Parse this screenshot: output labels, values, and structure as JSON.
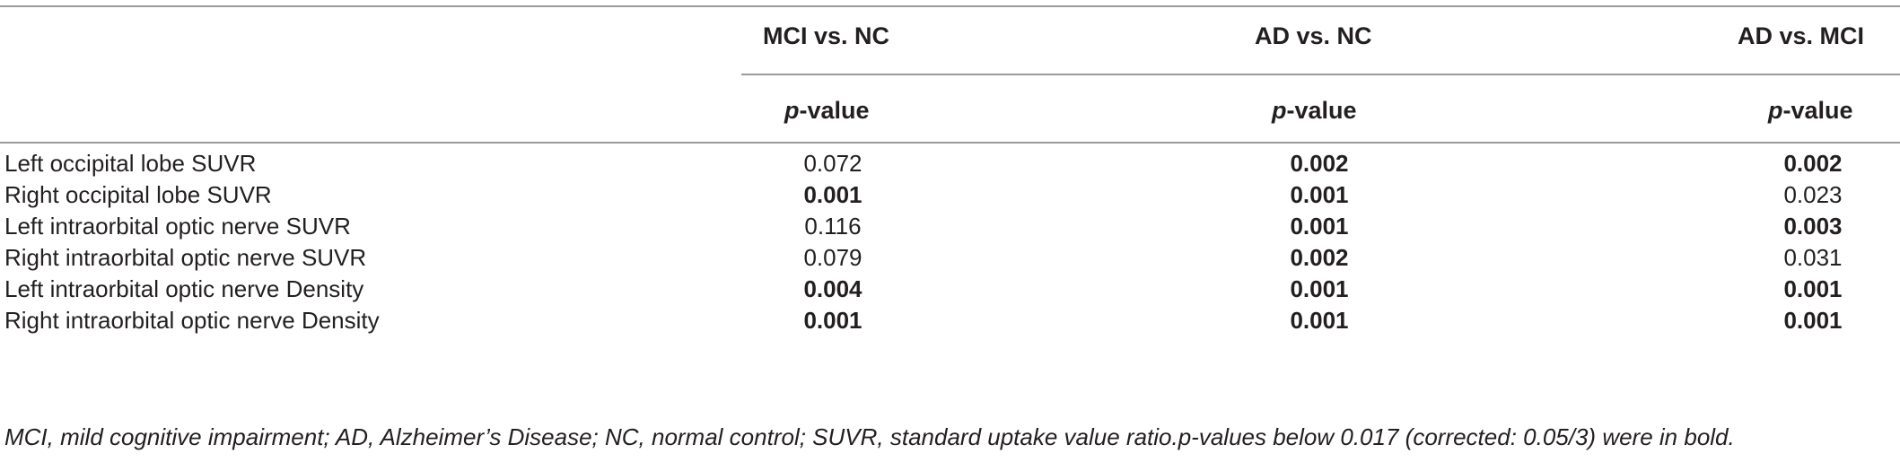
{
  "table": {
    "columns": [
      {
        "group_label": "MCI vs. NC",
        "sub_label_prefix": "p",
        "sub_label_suffix": "-value"
      },
      {
        "group_label": "AD vs. NC",
        "sub_label_prefix": "p",
        "sub_label_suffix": "-value"
      },
      {
        "group_label": "AD vs. MCI",
        "sub_label_prefix": "p",
        "sub_label_suffix": "-value"
      }
    ],
    "rows": [
      {
        "label": "Left occipital lobe SUVR",
        "values": [
          {
            "text": "0.072",
            "bold": false
          },
          {
            "text": "0.002",
            "bold": true
          },
          {
            "text": "0.002",
            "bold": true
          }
        ]
      },
      {
        "label": "Right occipital lobe SUVR",
        "values": [
          {
            "text": "0.001",
            "bold": true
          },
          {
            "text": "0.001",
            "bold": true
          },
          {
            "text": "0.023",
            "bold": false
          }
        ]
      },
      {
        "label": "Left intraorbital optic nerve SUVR",
        "values": [
          {
            "text": "0.116",
            "bold": false
          },
          {
            "text": "0.001",
            "bold": true
          },
          {
            "text": "0.003",
            "bold": true
          }
        ]
      },
      {
        "label": "Right intraorbital optic nerve SUVR",
        "values": [
          {
            "text": "0.079",
            "bold": false
          },
          {
            "text": "0.002",
            "bold": true
          },
          {
            "text": "0.031",
            "bold": false
          }
        ]
      },
      {
        "label": "Left intraorbital optic nerve Density",
        "values": [
          {
            "text": "0.004",
            "bold": true
          },
          {
            "text": "0.001",
            "bold": true
          },
          {
            "text": "0.001",
            "bold": true
          }
        ]
      },
      {
        "label": "Right intraorbital optic nerve Density",
        "values": [
          {
            "text": "0.001",
            "bold": true
          },
          {
            "text": "0.001",
            "bold": true
          },
          {
            "text": "0.001",
            "bold": true
          }
        ]
      }
    ],
    "footnote": "MCI, mild cognitive impairment; AD, Alzheimer’s Disease; NC, normal control; SUVR, standard uptake value ratio.p-values below 0.017 (corrected: 0.05/3) were in bold."
  }
}
